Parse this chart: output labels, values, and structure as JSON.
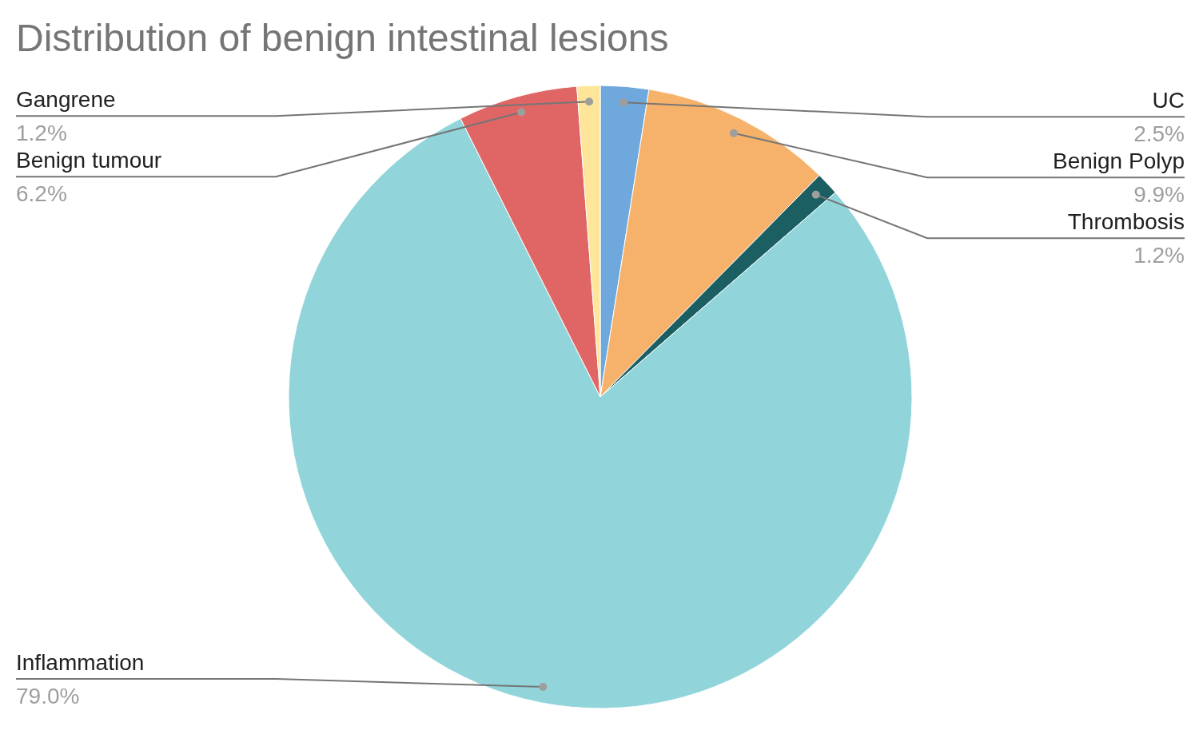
{
  "chart_data": {
    "type": "pie",
    "title": "Distribution of benign intestinal lesions",
    "categories": [
      "UC",
      "Benign Polyp",
      "Thrombosis",
      "Inflammation",
      "Benign tumour",
      "Gangrene"
    ],
    "values": [
      2.5,
      9.9,
      1.2,
      79.0,
      6.2,
      1.2
    ],
    "value_labels": [
      "2.5%",
      "9.9%",
      "1.2%",
      "79.0%",
      "6.2%",
      "1.2%"
    ],
    "colors": [
      "#6fa8dc",
      "#f6b26b",
      "#1c5f63",
      "#91d5db",
      "#e06666",
      "#ffe599"
    ],
    "legend": false
  }
}
